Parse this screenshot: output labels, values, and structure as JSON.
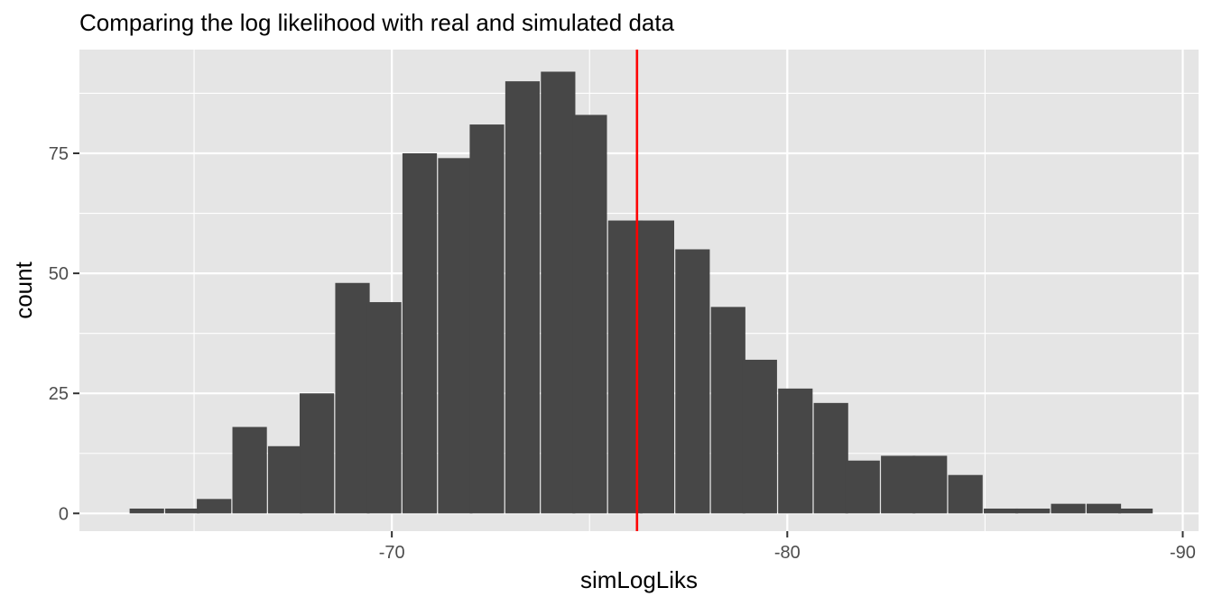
{
  "chart_data": {
    "type": "bar",
    "title": "Comparing the log likelihood with real and simulated data",
    "xlabel": "simLogLiks",
    "ylabel": "count",
    "x_axis_reversed": true,
    "xlim": [
      -62.1,
      -90.4
    ],
    "ylim": [
      -3.7,
      96.6
    ],
    "x_ticks": [
      -70,
      -80,
      -90
    ],
    "x_tick_labels": [
      "-70",
      "-80",
      "-90"
    ],
    "y_ticks": [
      0,
      25,
      50,
      75
    ],
    "y_tick_labels": [
      "0",
      "25",
      "50",
      "75"
    ],
    "bin_width": 0.8621,
    "bins": [
      {
        "x": -63.8,
        "count": 1
      },
      {
        "x": -64.7,
        "count": 1
      },
      {
        "x": -65.5,
        "count": 3
      },
      {
        "x": -66.4,
        "count": 18
      },
      {
        "x": -67.3,
        "count": 14
      },
      {
        "x": -68.1,
        "count": 25
      },
      {
        "x": -69.0,
        "count": 48
      },
      {
        "x": -69.8,
        "count": 44
      },
      {
        "x": -70.7,
        "count": 75
      },
      {
        "x": -71.6,
        "count": 74
      },
      {
        "x": -72.4,
        "count": 81
      },
      {
        "x": -73.3,
        "count": 90
      },
      {
        "x": -74.2,
        "count": 92
      },
      {
        "x": -75.0,
        "count": 83
      },
      {
        "x": -75.9,
        "count": 61
      },
      {
        "x": -76.7,
        "count": 61
      },
      {
        "x": -77.6,
        "count": 55
      },
      {
        "x": -78.5,
        "count": 43
      },
      {
        "x": -79.3,
        "count": 32
      },
      {
        "x": -80.2,
        "count": 26
      },
      {
        "x": -81.1,
        "count": 23
      },
      {
        "x": -81.9,
        "count": 11
      },
      {
        "x": -82.8,
        "count": 12
      },
      {
        "x": -83.6,
        "count": 12
      },
      {
        "x": -84.5,
        "count": 8
      },
      {
        "x": -85.4,
        "count": 1
      },
      {
        "x": -86.2,
        "count": 1
      },
      {
        "x": -87.1,
        "count": 2
      },
      {
        "x": -88.0,
        "count": 2
      },
      {
        "x": -88.8,
        "count": 1
      }
    ],
    "reference_line": {
      "x": -76.2,
      "color": "#ff0000"
    },
    "bar_color": "#474747",
    "panel_background": "#e5e5e5",
    "grid": true,
    "grid_color": "#ffffff",
    "legend": "none"
  }
}
